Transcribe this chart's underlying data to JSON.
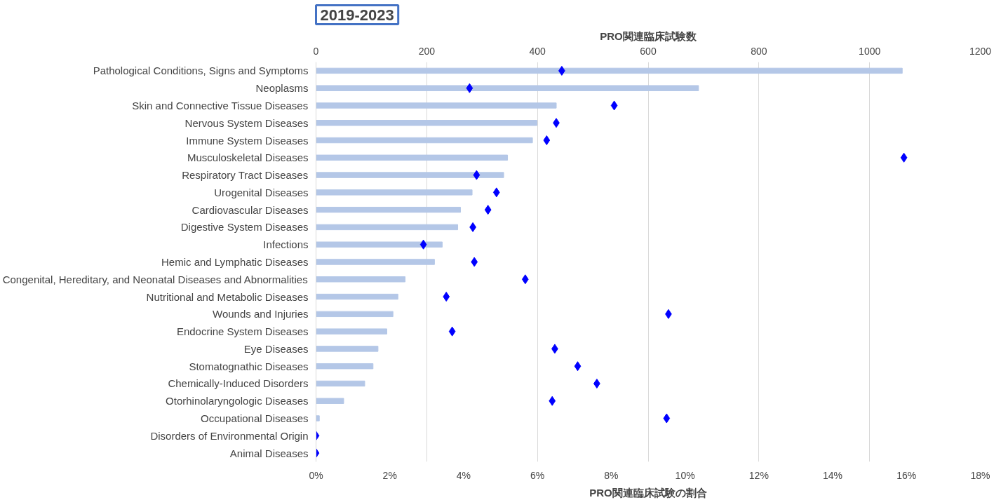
{
  "chart_data": {
    "type": "bar",
    "orientation": "horizontal",
    "title": "2019-2023",
    "xlabel": "PRO関連臨床試験の割合",
    "x2label": "PRO関連臨床試験数",
    "categories": [
      "Pathological Conditions, Signs and Symptoms",
      "Neoplasms",
      "Skin and Connective Tissue Diseases",
      "Nervous System Diseases",
      "Immune System Diseases",
      "Musculoskeletal Diseases",
      "Respiratory Tract Diseases",
      "Urogenital Diseases",
      "Cardiovascular Diseases",
      "Digestive System Diseases",
      "Infections",
      "Hemic and Lymphatic Diseases",
      "Congenital, Hereditary, and Neonatal Diseases and Abnormalities",
      "Nutritional and Metabolic Diseases",
      "Wounds and Injuries",
      "Endocrine System Diseases",
      "Eye Diseases",
      "Stomatognathic Diseases",
      "Chemically-Induced Disorders",
      "Otorhinolaryngologic Diseases",
      "Occupational Diseases",
      "Disorders of Environmental Origin",
      "Animal Diseases"
    ],
    "series": [
      {
        "axis": "x2",
        "color": "#b4c7e7",
        "values": [
          1059,
          691,
          434,
          399,
          391,
          346,
          339,
          282,
          261,
          256,
          228,
          214,
          161,
          148,
          139,
          128,
          112,
          103,
          88,
          50,
          6,
          0,
          0
        ]
      },
      {
        "type": "scatter",
        "color": "#0000ff",
        "marker": "diamond",
        "values": [
          6.66,
          4.16,
          8.08,
          6.51,
          6.25,
          15.93,
          4.35,
          4.89,
          4.66,
          4.25,
          2.91,
          4.29,
          5.67,
          3.53,
          9.55,
          3.69,
          6.47,
          7.09,
          7.61,
          6.4,
          9.5,
          0,
          0
        ]
      }
    ],
    "xlim": [
      0,
      18
    ],
    "xticks": [
      {
        "value": 0,
        "label": "0%"
      },
      {
        "value": 2,
        "label": "2%"
      },
      {
        "value": 4,
        "label": "4%"
      },
      {
        "value": 6,
        "label": "6%"
      },
      {
        "value": 8,
        "label": "8%"
      },
      {
        "value": 10,
        "label": "10%"
      },
      {
        "value": 12,
        "label": "12%"
      },
      {
        "value": 14,
        "label": "14%"
      },
      {
        "value": 16,
        "label": "16%"
      },
      {
        "value": 18,
        "label": "18%"
      }
    ],
    "x2lim": [
      0,
      1200
    ],
    "x2ticks": [
      0,
      200,
      400,
      600,
      800,
      1000,
      1200
    ],
    "grid": "x"
  }
}
